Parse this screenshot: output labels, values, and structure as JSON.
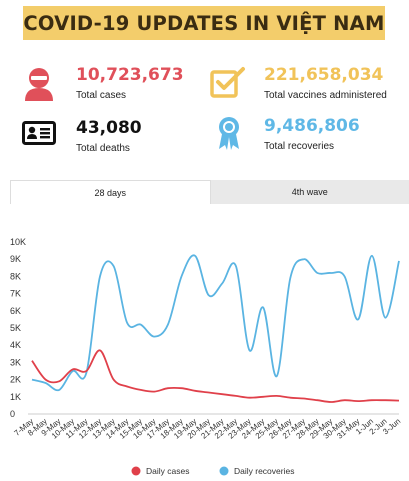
{
  "header": {
    "title": "COVID-19 UPDATES IN VIỆT NAM"
  },
  "stats": {
    "cases": {
      "value": "10,723,673",
      "label": "Total cases",
      "color": "#e0505a",
      "icon": "person-icon"
    },
    "deaths": {
      "value": "43,080",
      "label": "Total deaths",
      "color": "#111111",
      "icon": "id-card-icon"
    },
    "vaccines": {
      "value": "221,658,034",
      "label": "Total vaccines administered",
      "color": "#f1c359",
      "icon": "checkbox-icon"
    },
    "recoveries": {
      "value": "9,486,806",
      "label": "Total recoveries",
      "color": "#5fb8e6",
      "icon": "award-badge-icon"
    }
  },
  "tabs": [
    {
      "label": "28 days",
      "active": true
    },
    {
      "label": "4th wave",
      "active": false
    }
  ],
  "chart_data": {
    "type": "line",
    "x": [
      "7-May",
      "8-May",
      "9-May",
      "10-May",
      "11-May",
      "12-May",
      "13-May",
      "14-May",
      "15-May",
      "16-May",
      "17-May",
      "18-May",
      "19-May",
      "20-May",
      "21-May",
      "22-May",
      "23-May",
      "24-May",
      "25-May",
      "26-May",
      "27-May",
      "28-May",
      "29-May",
      "30-May",
      "31-May",
      "1-Jun",
      "2-Jun",
      "3-Jun"
    ],
    "series": [
      {
        "name": "Daily cases",
        "color": "#e0404a",
        "values": [
          3100,
          2000,
          1900,
          2600,
          2500,
          3700,
          2000,
          1600,
          1400,
          1300,
          1500,
          1500,
          1350,
          1250,
          1150,
          1050,
          950,
          1000,
          1050,
          950,
          900,
          800,
          700,
          800,
          750,
          800,
          800,
          780
        ]
      },
      {
        "name": "Daily recoveries",
        "color": "#5ab4e2",
        "values": [
          2000,
          1800,
          1400,
          2500,
          2400,
          8000,
          8600,
          5300,
          5200,
          4500,
          5200,
          8000,
          9200,
          6900,
          7600,
          8600,
          3700,
          6200,
          2200,
          7900,
          9000,
          8200,
          8200,
          8000,
          5500,
          9200,
          5600,
          8900
        ]
      }
    ],
    "ylim": [
      0,
      10000
    ],
    "yticks": [
      "0",
      "1K",
      "2K",
      "3K",
      "4K",
      "5K",
      "6K",
      "7K",
      "8K",
      "9K",
      "10K"
    ],
    "legend": "bottom"
  }
}
